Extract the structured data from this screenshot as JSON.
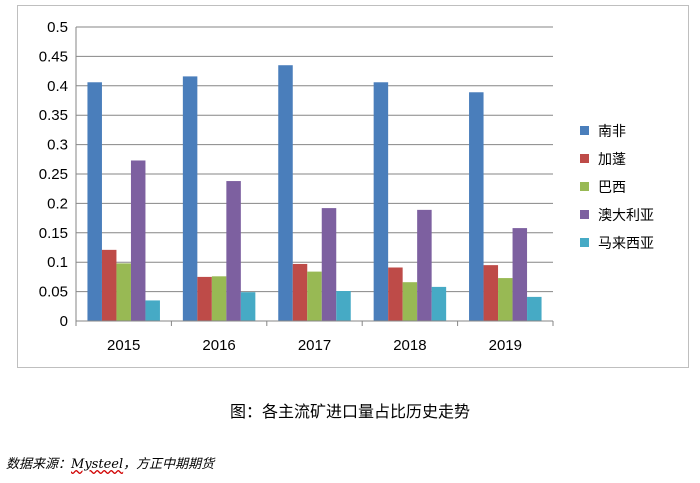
{
  "chart_data": {
    "type": "bar",
    "categories": [
      "2015",
      "2016",
      "2017",
      "2018",
      "2019"
    ],
    "series": [
      {
        "name": "南非",
        "color": "#4a7ebb",
        "values": [
          0.406,
          0.416,
          0.435,
          0.406,
          0.389
        ]
      },
      {
        "name": "加蓬",
        "color": "#be4b48",
        "values": [
          0.121,
          0.075,
          0.097,
          0.091,
          0.095
        ]
      },
      {
        "name": "巴西",
        "color": "#98b954",
        "values": [
          0.098,
          0.076,
          0.084,
          0.066,
          0.073
        ]
      },
      {
        "name": "澳大利亚",
        "color": "#7d60a0",
        "values": [
          0.273,
          0.238,
          0.192,
          0.189,
          0.158
        ]
      },
      {
        "name": "马来西亚",
        "color": "#46aac5",
        "values": [
          0.035,
          0.049,
          0.051,
          0.058,
          0.041
        ]
      }
    ],
    "ylim": [
      0,
      0.5
    ],
    "yticks": [
      "0",
      "0.05",
      "0.1",
      "0.15",
      "0.2",
      "0.25",
      "0.3",
      "0.35",
      "0.4",
      "0.45",
      "0.5"
    ],
    "grid": true,
    "legend": "right"
  },
  "caption": "图：各主流矿进口量占比历史走势",
  "source": {
    "prefix": "数据来源：",
    "brand": "Mysteel",
    "suffix": "，方正中期期货"
  }
}
